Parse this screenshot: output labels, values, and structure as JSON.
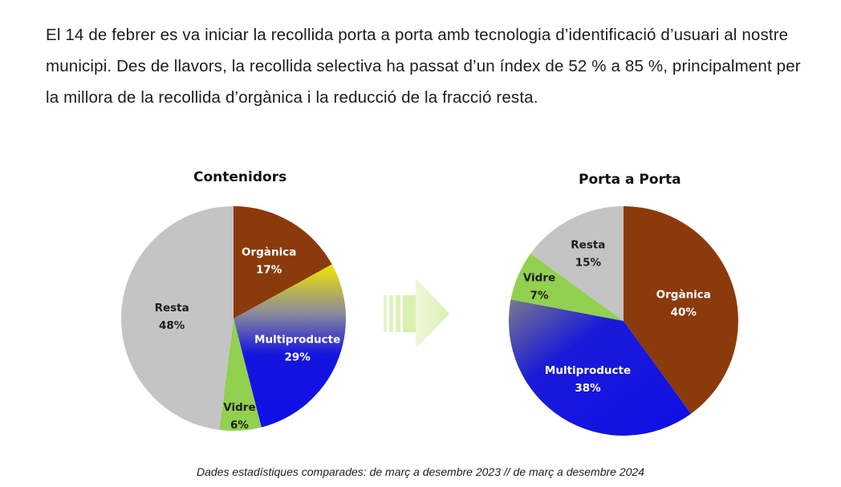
{
  "intro_text": "El 14 de febrer es va iniciar la recollida porta a porta amb tecnologia d’identificació d’usuari al nostre municipi. Des de llavors, la recollida selectiva ha passat d’un índex de 52 % a 85 %, principalment per la millora de la recollida d’orgànica i la reducció de la fracció resta.",
  "footnote": "Dades estadístiques comparades: de març a desembre 2023 // de març a desembre 2024",
  "arrow": {
    "icon": "right-arrow-icon",
    "color": "#d9f0b0"
  },
  "colors": {
    "organica": "#8b3a0c",
    "multiproducte": "#0f0fe8",
    "multiproducte_left_top": "#f2e600",
    "vidre": "#92d050",
    "resta": "#c4c4c4"
  },
  "chart_data": [
    {
      "type": "pie",
      "title": "Contenidors",
      "slices": [
        {
          "name": "Orgànica",
          "value": 17,
          "label": "17%",
          "color": "#8b3a0c"
        },
        {
          "name": "Multiproducte",
          "value": 29,
          "label": "29%",
          "color": "#0f0fe8"
        },
        {
          "name": "Vidre",
          "value": 6,
          "label": "6%",
          "color": "#92d050"
        },
        {
          "name": "Resta",
          "value": 48,
          "label": "48%",
          "color": "#c4c4c4"
        }
      ]
    },
    {
      "type": "pie",
      "title": "Porta a Porta",
      "slices": [
        {
          "name": "Orgànica",
          "value": 40,
          "label": "40%",
          "color": "#8b3a0c"
        },
        {
          "name": "Multiproducte",
          "value": 38,
          "label": "38%",
          "color": "#0f0fe8"
        },
        {
          "name": "Vidre",
          "value": 7,
          "label": "7%",
          "color": "#92d050"
        },
        {
          "name": "Resta",
          "value": 15,
          "label": "15%",
          "color": "#c4c4c4"
        }
      ]
    }
  ]
}
